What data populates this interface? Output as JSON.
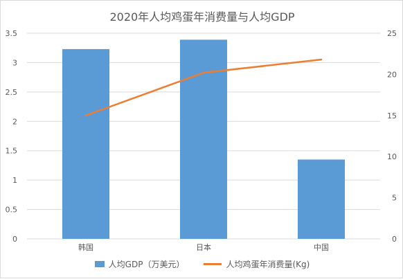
{
  "chart_data": {
    "type": "bar",
    "title": "2020年人均鸡蛋年消费量与人均GDP",
    "categories": [
      "韩国",
      "日本",
      "中国"
    ],
    "series": [
      {
        "name": "人均GDP（万美元）",
        "type": "bar",
        "axis": "left",
        "color": "#5b9bd5",
        "values": [
          3.23,
          3.39,
          1.35
        ]
      },
      {
        "name": "人均鸡蛋年消费量(Kg)",
        "type": "line",
        "axis": "right",
        "color": "#ed7d31",
        "values": [
          15.0,
          20.2,
          21.8
        ]
      }
    ],
    "y_left": {
      "min": 0,
      "max": 3.5,
      "ticks": [
        "0",
        "0.5",
        "1",
        "1.5",
        "2",
        "2.5",
        "3",
        "3.5"
      ]
    },
    "y_right": {
      "min": 0,
      "max": 25,
      "ticks": [
        "0",
        "5",
        "10",
        "15",
        "20",
        "25"
      ]
    },
    "grid": true,
    "legend_position": "bottom"
  }
}
